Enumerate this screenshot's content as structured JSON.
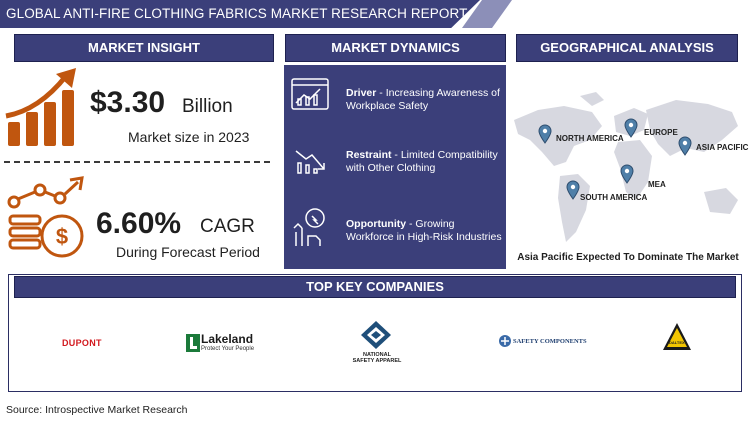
{
  "header": {
    "title": "GLOBAL ANTI-FIRE CLOTHING FABRICS MARKET RESEARCH REPORT"
  },
  "insight": {
    "title": "MARKET INSIGHT",
    "market_value": "$3.30",
    "market_unit": "Billion",
    "market_caption": "Market size in 2023",
    "cagr_value": "6.60%",
    "cagr_label": "CAGR",
    "cagr_caption": "During Forecast Period"
  },
  "dynamics": {
    "title": "MARKET DYNAMICS",
    "items": [
      {
        "label": "Driver",
        "text": " - Increasing Awareness of Workplace Safety",
        "icon": "driver-chart-icon"
      },
      {
        "label": "Restraint",
        "text": " - Limited Compatibility with Other Clothing",
        "icon": "restraint-chart-icon"
      },
      {
        "label": "Opportunity",
        "text": " - Growing Workforce in High-Risk Industries",
        "icon": "opportunity-hand-icon"
      }
    ]
  },
  "geo": {
    "title": "GEOGRAPHICAL ANALYSIS",
    "regions": [
      "NORTH AMERICA",
      "EUROPE",
      "ASIA PACIFIC",
      "MEA",
      "SOUTH AMERICA"
    ],
    "caption": "Asia Pacific Expected To Dominate The Market"
  },
  "companies": {
    "title": "TOP KEY COMPANIES",
    "logos": [
      {
        "name": "DUPONT"
      },
      {
        "name": "Lakeland",
        "tagline": "Protect Your People"
      },
      {
        "name": "NATIONAL",
        "tagline": "SAFETY APPAREL"
      },
      {
        "name": "SAFETY COMPONENTS"
      },
      {
        "name": "DALTEX"
      }
    ]
  },
  "footer": {
    "source": "Source: Introspective Market Research"
  },
  "colors": {
    "navy": "#3b3f7a",
    "orange": "#c0560f",
    "map_gray": "#d7d8e0",
    "pin_blue": "#4f7fa8"
  }
}
